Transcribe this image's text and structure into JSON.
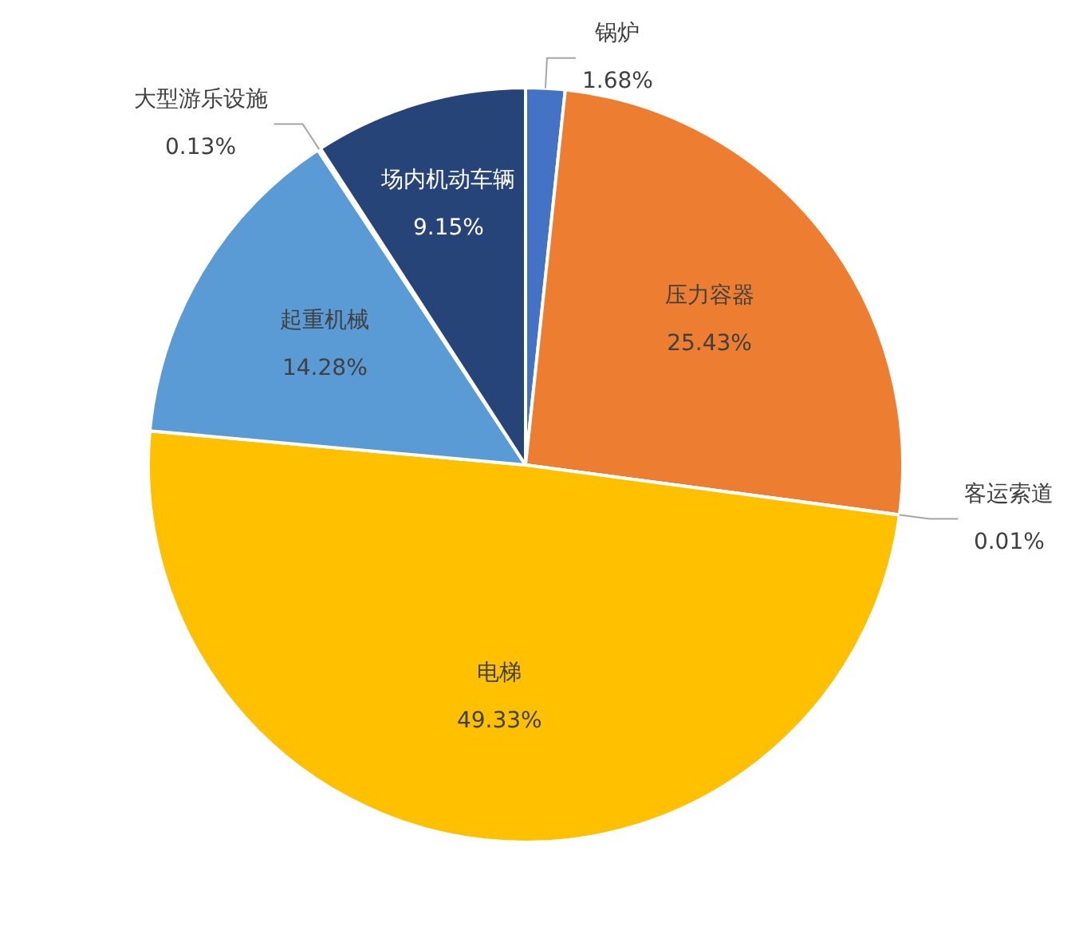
{
  "chart_data": {
    "type": "pie",
    "categories": [
      "锅炉",
      "压力容器",
      "客运索道",
      "电梯",
      "起重机械",
      "大型游乐设施",
      "场内机动车辆"
    ],
    "values": [
      1.68,
      25.43,
      0.01,
      49.33,
      14.28,
      0.13,
      9.15
    ],
    "value_labels": [
      "1.68%",
      "25.43%",
      "0.01%",
      "49.33%",
      "14.28%",
      "0.13%",
      "9.15%"
    ],
    "colors": [
      "#4472c4",
      "#ed7d31",
      "#a5a5a5",
      "#ffc000",
      "#5b9bd5",
      "#70ad47",
      "#264478"
    ],
    "legend": false
  }
}
